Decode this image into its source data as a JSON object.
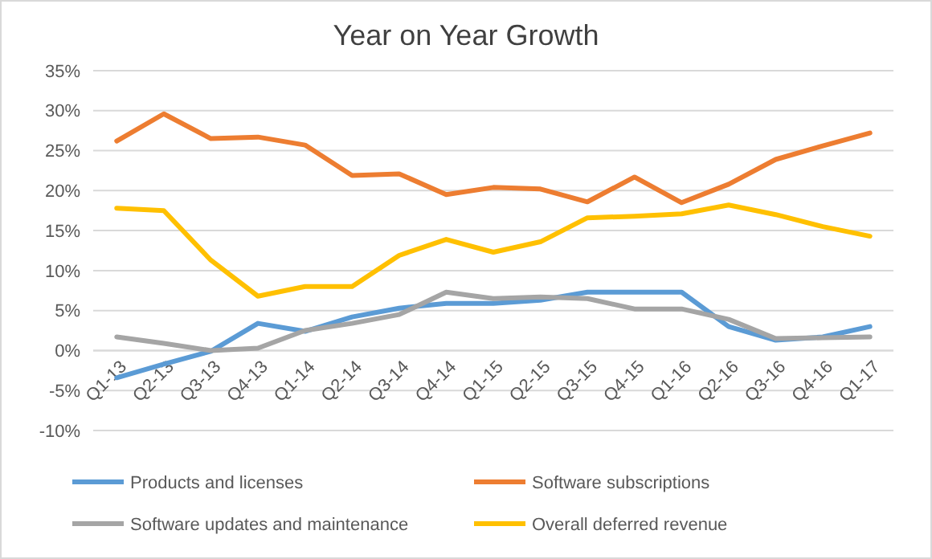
{
  "chart_data": {
    "type": "line",
    "title": "Year on Year Growth",
    "categories": [
      "Q1-13",
      "Q2-13",
      "Q3-13",
      "Q4-13",
      "Q1-14",
      "Q2-14",
      "Q3-14",
      "Q4-14",
      "Q1-15",
      "Q2-15",
      "Q3-15",
      "Q4-15",
      "Q1-16",
      "Q2-16",
      "Q3-16",
      "Q4-16",
      "Q1-17"
    ],
    "series": [
      {
        "name": "Products and licenses",
        "color": "#5b9bd5",
        "values": [
          -3.4,
          -1.7,
          -0.1,
          3.4,
          2.4,
          4.2,
          5.3,
          5.9,
          5.9,
          6.3,
          7.3,
          7.3,
          7.3,
          3.0,
          1.3,
          1.7,
          3.0
        ]
      },
      {
        "name": "Software subscriptions",
        "color": "#ed7d31",
        "values": [
          26.2,
          29.6,
          26.5,
          26.7,
          25.7,
          21.9,
          22.1,
          19.5,
          20.4,
          20.2,
          18.6,
          21.7,
          18.5,
          20.8,
          23.9,
          25.6,
          27.2
        ]
      },
      {
        "name": "Software updates and maintenance",
        "color": "#a5a5a5",
        "values": [
          1.7,
          0.9,
          0.0,
          0.3,
          2.5,
          3.4,
          4.5,
          7.3,
          6.5,
          6.7,
          6.5,
          5.2,
          5.2,
          3.9,
          1.5,
          1.6,
          1.7
        ]
      },
      {
        "name": "Overall deferred revenue",
        "color": "#ffc000",
        "values": [
          17.8,
          17.5,
          11.3,
          6.8,
          8.0,
          8.0,
          11.9,
          13.9,
          12.3,
          13.6,
          16.6,
          16.8,
          17.1,
          18.2,
          17.0,
          15.5,
          14.3
        ]
      }
    ],
    "ylim": [
      -10,
      35
    ],
    "yticks": [
      {
        "value": -10,
        "label": "-10%"
      },
      {
        "value": -5,
        "label": "-5%"
      },
      {
        "value": 0,
        "label": "0%"
      },
      {
        "value": 5,
        "label": "5%"
      },
      {
        "value": 10,
        "label": "10%"
      },
      {
        "value": 15,
        "label": "15%"
      },
      {
        "value": 20,
        "label": "20%"
      },
      {
        "value": 25,
        "label": "25%"
      },
      {
        "value": 30,
        "label": "30%"
      },
      {
        "value": 35,
        "label": "35%"
      }
    ],
    "grid": "y",
    "legend": "bottom",
    "marker": "none",
    "line_style": "solid"
  }
}
